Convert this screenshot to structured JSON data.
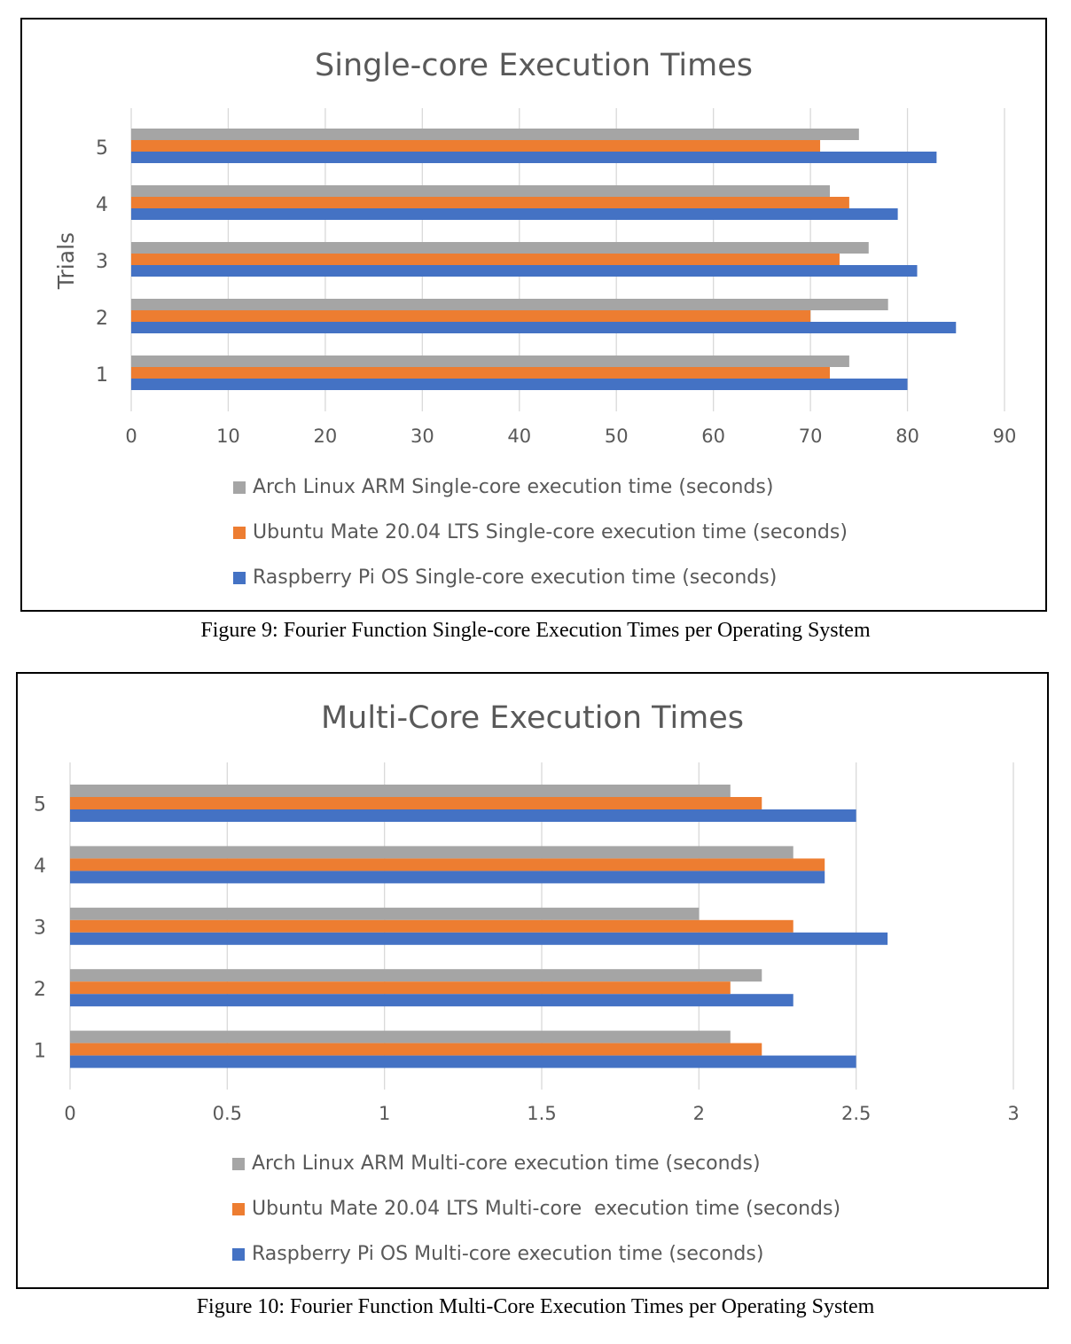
{
  "figures": [
    {
      "caption": "Figure 9: Fourier Function Single-core Execution Times per Operating System"
    },
    {
      "caption": "Figure 10: Fourier Function Multi-Core Execution Times per Operating System"
    }
  ],
  "chart_data": [
    {
      "type": "bar",
      "orientation": "horizontal",
      "title": "Single-core Execution Times",
      "xlabel": "",
      "ylabel": "Trials",
      "categories": [
        "1",
        "2",
        "3",
        "4",
        "5"
      ],
      "xlim": [
        0,
        90
      ],
      "xticks": [
        "0",
        "10",
        "20",
        "30",
        "40",
        "50",
        "60",
        "70",
        "80",
        "90"
      ],
      "grid": "vertical",
      "legend_position": "bottom",
      "series": [
        {
          "name": "Raspberry Pi OS Single-core execution time (seconds)",
          "color": "#4472C4",
          "values": [
            80,
            85,
            81,
            79,
            83
          ]
        },
        {
          "name": "Ubuntu Mate 20.04 LTS Single-core execution time (seconds)",
          "color": "#ED7D31",
          "values": [
            72,
            70,
            73,
            74,
            71
          ]
        },
        {
          "name": "Arch Linux ARM Single-core execution time (seconds)",
          "color": "#A5A5A5",
          "values": [
            74,
            78,
            76,
            72,
            75
          ]
        }
      ]
    },
    {
      "type": "bar",
      "orientation": "horizontal",
      "title": "Multi-Core Execution Times",
      "xlabel": "",
      "ylabel": "",
      "categories": [
        "1",
        "2",
        "3",
        "4",
        "5"
      ],
      "xlim": [
        0,
        3
      ],
      "xticks": [
        "0",
        "0.5",
        "1",
        "1.5",
        "2",
        "2.5",
        "3"
      ],
      "grid": "vertical",
      "legend_position": "bottom",
      "series": [
        {
          "name": "Raspberry Pi OS Multi-core execution time (seconds)",
          "color": "#4472C4",
          "values": [
            2.5,
            2.3,
            2.6,
            2.4,
            2.5
          ]
        },
        {
          "name": "Ubuntu Mate 20.04 LTS Multi-core  execution time (seconds)",
          "color": "#ED7D31",
          "values": [
            2.2,
            2.1,
            2.3,
            2.4,
            2.2
          ]
        },
        {
          "name": "Arch Linux ARM Multi-core execution time (seconds)",
          "color": "#A5A5A5",
          "values": [
            2.1,
            2.2,
            2.0,
            2.3,
            2.1
          ]
        }
      ]
    }
  ]
}
